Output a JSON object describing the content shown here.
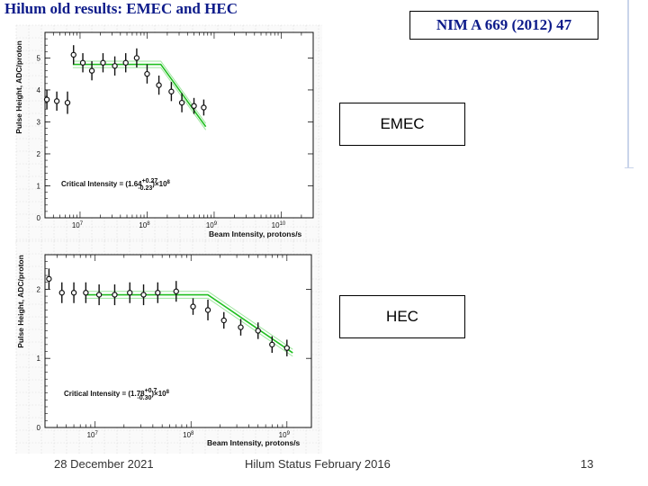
{
  "slide": {
    "title": "Hilum old results: EMEC and HEC",
    "reference": "NIM  A 669 (2012) 47",
    "footer_date": "28 December  2021",
    "footer_center": "Hilum Status February 2016",
    "page_number": "13"
  },
  "chart_data": [
    {
      "type": "scatter",
      "label_box": "EMEC",
      "xlabel": "Beam Intensity, protons/s",
      "ylabel": "Pulse Height, ADC/proton",
      "xscale": "log",
      "xlim": [
        3000000,
        30000000000
      ],
      "ylim": [
        0,
        5.8
      ],
      "xticks": [
        {
          "v": 10000000,
          "label": "10",
          "exp": "7"
        },
        {
          "v": 100000000,
          "label": "10",
          "exp": "8"
        },
        {
          "v": 1000000000,
          "label": "10",
          "exp": "9"
        },
        {
          "v": 10000000000,
          "label": "10",
          "exp": "10"
        }
      ],
      "yticks": [
        0,
        1,
        2,
        3,
        4,
        5
      ],
      "annotation": {
        "prefix": "Critical Intensity = (1.64",
        "plus": "+0.27",
        "minus": "-0.23",
        "suffix": ")×10",
        "exp": "8"
      },
      "points": [
        {
          "x": 3200000,
          "y": 3.7,
          "err": 0.3
        },
        {
          "x": 4500000,
          "y": 3.65,
          "err": 0.3
        },
        {
          "x": 6500000,
          "y": 3.6,
          "err": 0.35
        },
        {
          "x": 8000000,
          "y": 5.1,
          "err": 0.3
        },
        {
          "x": 11000000,
          "y": 4.85,
          "err": 0.3
        },
        {
          "x": 15000000,
          "y": 4.6,
          "err": 0.3
        },
        {
          "x": 22000000,
          "y": 4.85,
          "err": 0.3
        },
        {
          "x": 33000000,
          "y": 4.75,
          "err": 0.3
        },
        {
          "x": 48000000,
          "y": 4.85,
          "err": 0.3
        },
        {
          "x": 70000000,
          "y": 5.0,
          "err": 0.3
        },
        {
          "x": 100000000,
          "y": 4.5,
          "err": 0.3
        },
        {
          "x": 150000000,
          "y": 4.15,
          "err": 0.3
        },
        {
          "x": 230000000,
          "y": 3.95,
          "err": 0.3
        },
        {
          "x": 330000000,
          "y": 3.6,
          "err": 0.3
        },
        {
          "x": 500000000,
          "y": 3.5,
          "err": 0.25
        },
        {
          "x": 700000000,
          "y": 3.45,
          "err": 0.25
        }
      ],
      "fit": {
        "plateau": 4.8,
        "knee": 160000000,
        "end": {
          "x": 750000000,
          "y": 2.85
        },
        "band": 0.1
      }
    },
    {
      "type": "scatter",
      "label_box": "HEC",
      "xlabel": "Beam Intensity, protons/s",
      "ylabel": "Pulse Height, ADC/proton",
      "xscale": "log",
      "xlim": [
        3000000,
        1800000000
      ],
      "ylim": [
        0,
        2.5
      ],
      "xticks": [
        {
          "v": 10000000,
          "label": "10",
          "exp": "7"
        },
        {
          "v": 100000000,
          "label": "10",
          "exp": "8"
        },
        {
          "v": 1000000000,
          "label": "10",
          "exp": "9"
        }
      ],
      "yticks": [
        0,
        1,
        2
      ],
      "annotation": {
        "prefix": "Critical Intensity = (1.78",
        "plus": "+0.7",
        "minus": "-0.30",
        "suffix": ")×10",
        "exp": "8"
      },
      "points": [
        {
          "x": 3300000,
          "y": 2.15,
          "err": 0.15
        },
        {
          "x": 4500000,
          "y": 1.95,
          "err": 0.15
        },
        {
          "x": 6000000,
          "y": 1.95,
          "err": 0.15
        },
        {
          "x": 8000000,
          "y": 1.95,
          "err": 0.15
        },
        {
          "x": 11000000,
          "y": 1.92,
          "err": 0.15
        },
        {
          "x": 16000000,
          "y": 1.92,
          "err": 0.15
        },
        {
          "x": 23000000,
          "y": 1.95,
          "err": 0.15
        },
        {
          "x": 32000000,
          "y": 1.92,
          "err": 0.15
        },
        {
          "x": 45000000,
          "y": 1.95,
          "err": 0.15
        },
        {
          "x": 70000000,
          "y": 1.97,
          "err": 0.15
        },
        {
          "x": 105000000,
          "y": 1.75,
          "err": 0.12
        },
        {
          "x": 150000000,
          "y": 1.7,
          "err": 0.15
        },
        {
          "x": 220000000,
          "y": 1.55,
          "err": 0.12
        },
        {
          "x": 330000000,
          "y": 1.45,
          "err": 0.12
        },
        {
          "x": 500000000,
          "y": 1.4,
          "err": 0.12
        },
        {
          "x": 700000000,
          "y": 1.2,
          "err": 0.12
        },
        {
          "x": 1000000000,
          "y": 1.15,
          "err": 0.12
        }
      ],
      "fit": {
        "plateau": 1.92,
        "knee": 150000000,
        "end": {
          "x": 1150000000,
          "y": 1.08
        },
        "band": 0.05
      }
    }
  ]
}
